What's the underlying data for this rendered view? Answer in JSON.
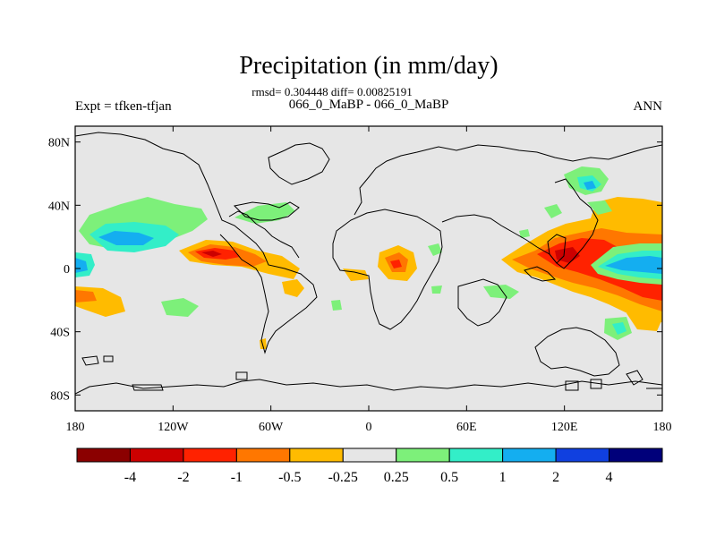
{
  "title": "Precipitation (in mm/day)",
  "stats_line": "rmsd= 0.304448 diff= 0.00825191",
  "subtitle": "066_0_MaBP - 066_0_MaBP",
  "left_label": "Expt = tfken-tfjan",
  "right_label": "ANN",
  "lat_ticks": [
    {
      "label": "80N",
      "lat": 80
    },
    {
      "label": "40N",
      "lat": 40
    },
    {
      "label": "0",
      "lat": 0
    },
    {
      "label": "40S",
      "lat": -40
    },
    {
      "label": "80S",
      "lat": -80
    }
  ],
  "lon_ticks": [
    {
      "label": "180",
      "lon": -180
    },
    {
      "label": "120W",
      "lon": -120
    },
    {
      "label": "60W",
      "lon": -60
    },
    {
      "label": "0",
      "lon": 0
    },
    {
      "label": "60E",
      "lon": 60
    },
    {
      "label": "120E",
      "lon": 120
    },
    {
      "label": "180",
      "lon": 180
    }
  ],
  "colorbar": {
    "colors": [
      "#8b0000",
      "#cc0000",
      "#ff2200",
      "#ff7700",
      "#ffbb00",
      "#e6e6e6",
      "#7df07a",
      "#33eec8",
      "#14aef0",
      "#1040e0",
      "#00007a"
    ],
    "labels": [
      "-4",
      "-2",
      "-1",
      "-0.5",
      "-0.25",
      "0.25",
      "0.5",
      "1",
      "2",
      "4"
    ]
  },
  "colors": {
    "background": "#e6e6e6",
    "coast": "#000000"
  }
}
